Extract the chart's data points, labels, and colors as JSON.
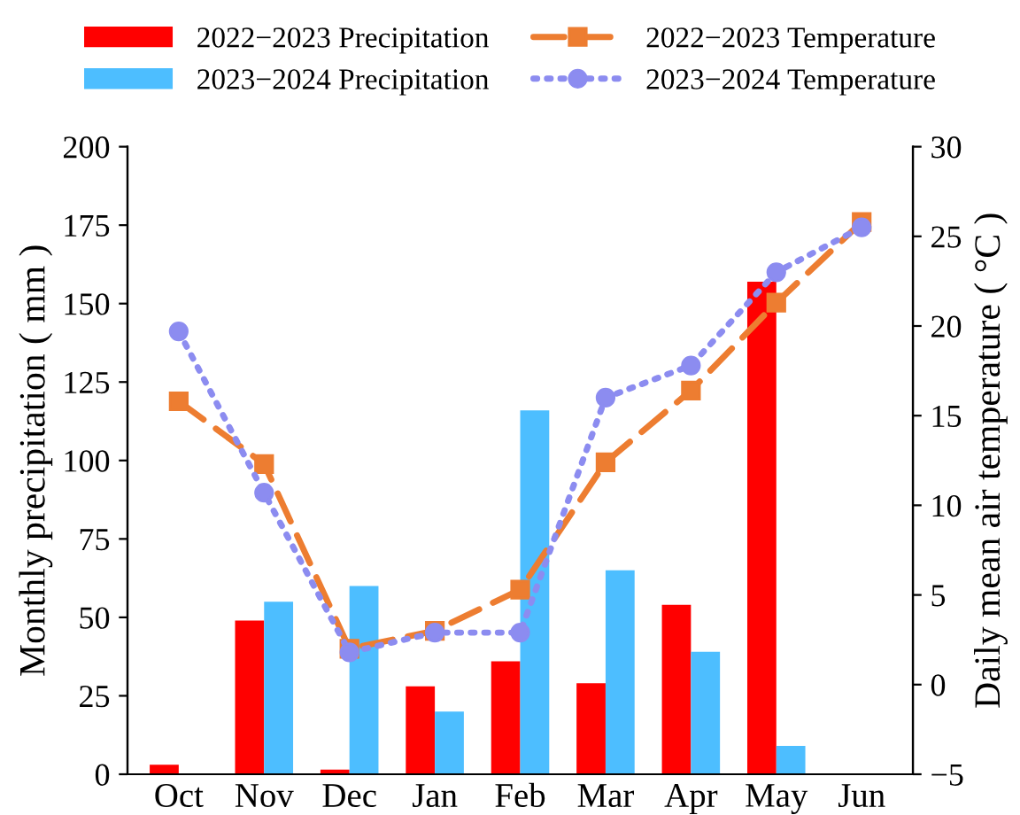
{
  "chart_data": {
    "type": "bar",
    "categories": [
      "Oct",
      "Nov",
      "Dec",
      "Jan",
      "Feb",
      "Mar",
      "Apr",
      "May",
      "Jun"
    ],
    "ylabel": "Monthly precipitation ( mm )",
    "y2label": "Daily mean air temperature ( °C )",
    "ylim": [
      0,
      200
    ],
    "yticks": [
      0,
      25,
      50,
      75,
      100,
      125,
      150,
      175,
      200
    ],
    "y2lim": [
      -5,
      30
    ],
    "y2ticks": [
      {
        "value": -5,
        "label": "−5"
      },
      0,
      5,
      10,
      15,
      20,
      25,
      30
    ],
    "legend": "top",
    "grid": false,
    "series": [
      {
        "name": "2022−2023 Precipitation",
        "color": "#ff0000",
        "values": [
          3,
          49,
          1.5,
          28,
          36,
          29,
          54,
          157,
          null
        ]
      },
      {
        "name": "2023−2024 Precipitation",
        "color": "#4dbeff",
        "values": [
          null,
          55,
          60,
          20,
          116,
          65,
          39,
          9,
          null
        ]
      },
      {
        "name": "2022−2023 Temperature",
        "type": "line",
        "axis": "y2",
        "color": "#ed7d31",
        "marker": "square",
        "line_style": "dashed",
        "values": [
          15.8,
          12.3,
          2,
          3,
          5.3,
          12.4,
          16.4,
          21.3,
          25.8
        ]
      },
      {
        "name": "2023−2024 Temperature",
        "type": "line",
        "axis": "y2",
        "color": "#8c8cf0",
        "marker": "circle",
        "line_style": "dotted",
        "values": [
          19.7,
          10.7,
          1.8,
          2.9,
          2.9,
          16,
          17.8,
          23,
          25.5
        ]
      }
    ]
  }
}
